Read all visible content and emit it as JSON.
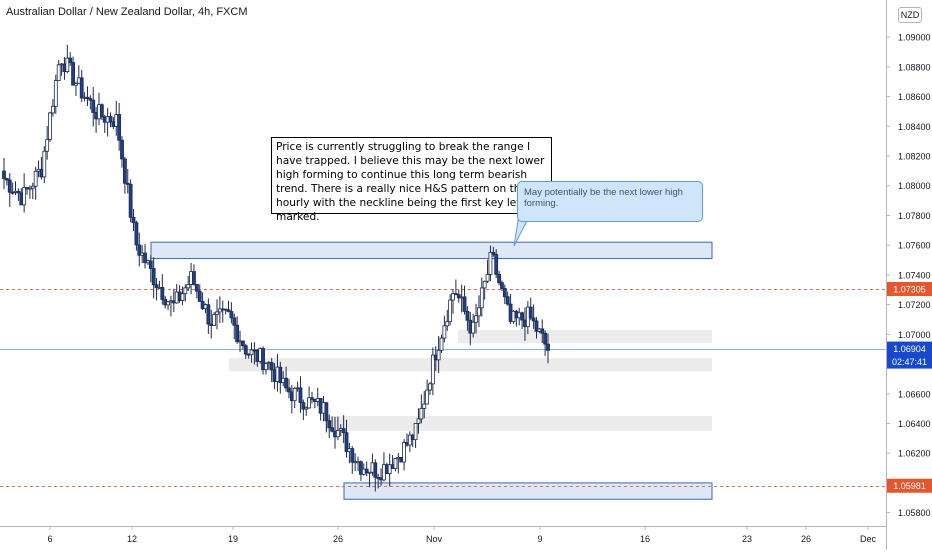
{
  "header": {
    "symbol_title": "Australian Dollar / New Zealand Dollar, 4h, FXCM",
    "currency_badge": "NZD"
  },
  "notes": {
    "main_text": "Price is currently struggling to break the range I have trapped. I believe this may be the next lower high forming to continue this long term bearish trend. There is a really nice H&S pattern on the hourly with the neckline being the first key level marked.",
    "callout_text": "May potentially be the next lower high forming."
  },
  "price_labels": {
    "level_upper": "1.07305",
    "current_price": "1.06904",
    "countdown": "02:47:41",
    "level_lower": "1.05981"
  },
  "colors": {
    "up_candle": "#ffffff",
    "down_candle": "#1e3f8c",
    "candle_outline": "#1e2a4a",
    "dashed_level": "#e26d48",
    "current_price": "#1848cc",
    "zone_fill": "#dde7f5",
    "zone_border": "#3b66b8",
    "grey_zone": "#ececec"
  },
  "chart_data": {
    "type": "candlestick",
    "y_range": [
      1.0571,
      1.0925
    ],
    "y_ticks": [
      "1.09000",
      "1.08800",
      "1.08600",
      "1.08400",
      "1.08200",
      "1.08000",
      "1.07800",
      "1.07600",
      "1.07400",
      "1.07200",
      "1.07000",
      "1.06800",
      "1.06600",
      "1.06400",
      "1.06200",
      "1.06000",
      "1.05800"
    ],
    "x_ticks": [
      "6",
      "12",
      "19",
      "26",
      "Nov",
      "9",
      "16",
      "23",
      "26",
      "Dec"
    ],
    "levels": [
      {
        "price": 1.07305,
        "style": "dashed"
      },
      {
        "price": 1.05981,
        "style": "dashed"
      },
      {
        "price": 1.06904,
        "style": "current"
      }
    ],
    "supply_demand_zones": [
      {
        "from": 1.0751,
        "to": 1.0762,
        "style": "blue"
      },
      {
        "from": 1.0589,
        "to": 1.06,
        "style": "blue"
      },
      {
        "from": 1.0694,
        "to": 1.0703,
        "style": "grey"
      },
      {
        "from": 1.0675,
        "to": 1.0684,
        "style": "grey"
      },
      {
        "from": 1.0635,
        "to": 1.0645,
        "style": "grey"
      }
    ],
    "close_path_key_points": [
      1.0805,
      1.0792,
      1.0812,
      1.0888,
      1.0866,
      1.0848,
      1.0844,
      1.0762,
      1.0738,
      1.0718,
      1.0738,
      1.0709,
      1.0712,
      1.0688,
      1.0682,
      1.0663,
      1.0656,
      1.065,
      1.0631,
      1.0612,
      1.0608,
      1.0618,
      1.0635,
      1.0688,
      1.0731,
      1.0702,
      1.0752,
      1.0708,
      1.0712,
      1.069
    ],
    "candles": []
  }
}
